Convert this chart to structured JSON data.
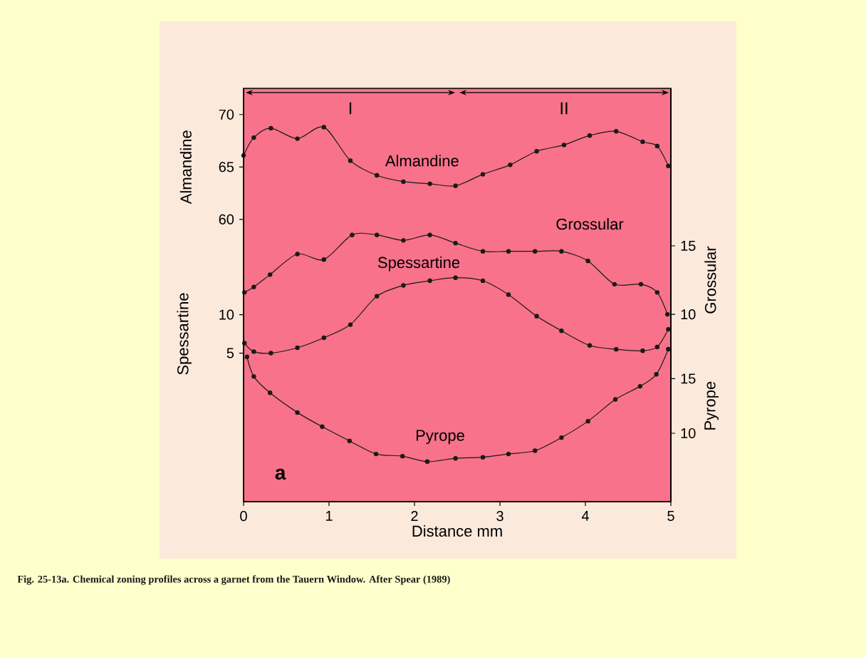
{
  "chart_data": [
    {
      "type": "line",
      "xlim": [
        0,
        5
      ],
      "ylim": [
        33.06,
        72.5
      ],
      "yticks": [
        60,
        65,
        70
      ],
      "ylabel": "Almandine",
      "tick_labels": "y",
      "marker": "circle",
      "annotations": [
        "I",
        "II",
        "Fig. 25-13a. Chemical zoning profiles across a garnet from the Tauern Window. After Spear (1989)"
      ],
      "series": [
        {
          "name": "Almandine",
          "color": "#1a1a1a",
          "x": [
            0,
            0.12,
            0.32,
            0.63,
            0.94,
            1.25,
            1.56,
            1.87,
            2.18,
            2.48,
            2.8,
            3.12,
            3.43,
            3.75,
            4.05,
            4.36,
            4.67,
            4.84,
            4.97
          ],
          "values": [
            66.1,
            67.8,
            68.7,
            67.7,
            68.8,
            65.6,
            64.2,
            63.6,
            63.4,
            63.2,
            64.3,
            65.2,
            66.5,
            67.1,
            68.0,
            68.4,
            67.4,
            67.0,
            65.1
          ]
        }
      ]
    },
    {
      "type": "line",
      "xlim": [
        0,
        5
      ],
      "ylim": [
        -14.3,
        39.4
      ],
      "yticks": [
        5,
        10
      ],
      "ylabel": "Spessartine",
      "tick_labels": "y",
      "marker": "circle",
      "series": [
        {
          "name": "Spessartine",
          "color": "#1a1a1a",
          "x": [
            0.01,
            0.12,
            0.32,
            0.63,
            0.94,
            1.25,
            1.56,
            1.87,
            2.18,
            2.48,
            2.8,
            3.1,
            3.43,
            3.72,
            4.05,
            4.36,
            4.67,
            4.84,
            4.97
          ],
          "values": [
            6.3,
            5.2,
            5.0,
            5.7,
            7.0,
            8.7,
            12.4,
            13.8,
            14.4,
            14.8,
            14.4,
            12.6,
            9.8,
            7.9,
            6.0,
            5.5,
            5.3,
            5.8,
            8.1
          ]
        }
      ]
    },
    {
      "type": "line",
      "xlim": [
        0,
        5
      ],
      "y2lim": [
        -3.68,
        26.5
      ],
      "y2ticks": [
        10,
        15
      ],
      "y2label": "Grossular",
      "tick_labels": "y",
      "marker": "circle",
      "series": [
        {
          "name": "Grossular",
          "color": "#1a1a1a",
          "axis": "y2",
          "x": [
            0.01,
            0.12,
            0.31,
            0.63,
            0.94,
            1.27,
            1.56,
            1.87,
            2.18,
            2.48,
            2.8,
            3.1,
            3.41,
            3.72,
            4.03,
            4.34,
            4.65,
            4.84,
            4.96
          ],
          "values": [
            11.6,
            12.0,
            12.9,
            14.4,
            14.0,
            15.8,
            15.8,
            15.4,
            15.8,
            15.2,
            14.6,
            14.6,
            14.6,
            14.6,
            13.9,
            12.2,
            12.2,
            11.6,
            10.0
          ]
        }
      ]
    },
    {
      "type": "line",
      "xlim": [
        0,
        5
      ],
      "xticks": [
        0,
        1,
        2,
        3,
        4,
        5
      ],
      "xlabel": "Distance mm",
      "y2lim": [
        3.73,
        41.6
      ],
      "y2ticks": [
        10,
        15
      ],
      "y2label": "Pyrope",
      "marker": "circle",
      "annotations": [
        "a"
      ],
      "series": [
        {
          "name": "Pyrope",
          "color": "#1a1a1a",
          "axis": "y2",
          "x": [
            0.04,
            0.12,
            0.31,
            0.63,
            0.92,
            1.24,
            1.55,
            1.86,
            2.15,
            2.48,
            2.8,
            3.1,
            3.41,
            3.72,
            4.03,
            4.35,
            4.64,
            4.83,
            4.97
          ],
          "values": [
            17.0,
            15.2,
            13.7,
            11.9,
            10.6,
            9.3,
            8.1,
            7.9,
            7.4,
            7.7,
            7.8,
            8.1,
            8.4,
            9.6,
            11.1,
            13.1,
            14.3,
            15.4,
            17.7
          ]
        }
      ]
    }
  ]
}
